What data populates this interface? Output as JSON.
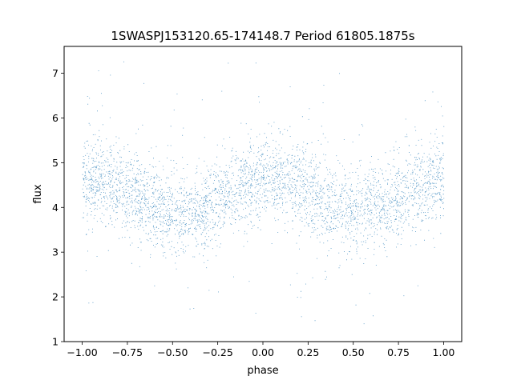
{
  "chart_data": {
    "type": "scatter",
    "title": "1SWASPJ153120.65-174148.7 Period 61805.1875s",
    "xlabel": "phase",
    "ylabel": "flux",
    "xlim": [
      -1.1,
      1.1
    ],
    "ylim": [
      1.0,
      7.6
    ],
    "xticks": [
      -1.0,
      -0.75,
      -0.5,
      -0.25,
      0.0,
      0.25,
      0.5,
      0.75,
      1.0
    ],
    "xtick_labels": [
      "−1.00",
      "−0.75",
      "−0.50",
      "−0.25",
      "0.00",
      "0.25",
      "0.50",
      "0.75",
      "1.00"
    ],
    "yticks": [
      1,
      2,
      3,
      4,
      5,
      6,
      7
    ],
    "ytick_labels": [
      "1",
      "2",
      "3",
      "4",
      "5",
      "6",
      "7"
    ],
    "grid": false,
    "legend": "none",
    "marker_color": "#1f77b4",
    "series": [
      {
        "phase_range": [
          -1.0,
          1.0
        ],
        "approx_point_count": 60000,
        "trend": {
          "x": [
            -1.0,
            -0.875,
            -0.75,
            -0.625,
            -0.5,
            -0.375,
            -0.25,
            -0.125,
            0.0,
            0.125,
            0.25,
            0.375,
            0.5,
            0.625,
            0.75,
            0.875,
            1.0
          ],
          "y": [
            4.6,
            4.6,
            4.4,
            4.1,
            3.9,
            3.9,
            4.2,
            4.5,
            4.6,
            4.6,
            4.4,
            4.1,
            3.9,
            3.9,
            4.2,
            4.5,
            4.6
          ]
        },
        "core_scatter": 0.45,
        "outlier_range": [
          1.3,
          7.4
        ]
      }
    ]
  }
}
